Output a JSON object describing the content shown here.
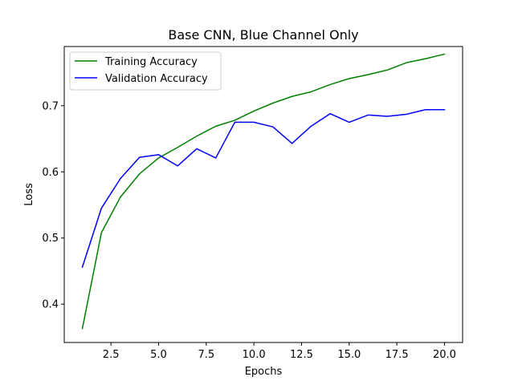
{
  "chart_data": {
    "type": "line",
    "title": "Base CNN, Blue Channel Only",
    "xlabel": "Epochs",
    "ylabel": "Loss",
    "xlim": [
      0.05,
      20.95
    ],
    "ylim": [
      0.342,
      0.7895
    ],
    "xticks": [
      2.5,
      5.0,
      7.5,
      10.0,
      12.5,
      15.0,
      17.5,
      20.0
    ],
    "xtick_labels": [
      "2.5",
      "5.0",
      "7.5",
      "10.0",
      "12.5",
      "15.0",
      "17.5",
      "20.0"
    ],
    "yticks": [
      0.4,
      0.5,
      0.6,
      0.7
    ],
    "ytick_labels": [
      "0.4",
      "0.5",
      "0.6",
      "0.7"
    ],
    "grid": false,
    "legend_position": "top-left",
    "x": [
      1,
      2,
      3,
      4,
      5,
      6,
      7,
      8,
      9,
      10,
      11,
      12,
      13,
      14,
      15,
      16,
      17,
      18,
      19,
      20
    ],
    "series": [
      {
        "name": "Training Accuracy",
        "color": "#008000",
        "values": [
          0.363,
          0.508,
          0.562,
          0.597,
          0.621,
          0.637,
          0.654,
          0.669,
          0.678,
          0.692,
          0.704,
          0.714,
          0.721,
          0.732,
          0.741,
          0.747,
          0.754,
          0.765,
          0.771,
          0.778
        ]
      },
      {
        "name": "Validation Accuracy",
        "color": "#0000ff",
        "values": [
          0.456,
          0.545,
          0.59,
          0.622,
          0.626,
          0.609,
          0.635,
          0.621,
          0.675,
          0.675,
          0.668,
          0.643,
          0.669,
          0.688,
          0.675,
          0.686,
          0.684,
          0.687,
          0.694,
          0.694
        ]
      }
    ]
  }
}
